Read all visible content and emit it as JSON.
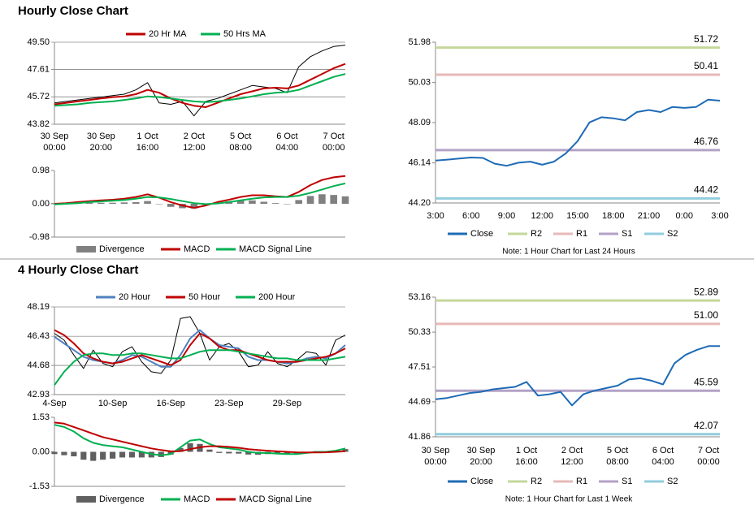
{
  "sections": [
    {
      "title": "Hourly Close Chart"
    },
    {
      "title": "4 Hourly Close Chart"
    }
  ],
  "chart_data": [
    {
      "type": "line",
      "legend": "top",
      "grid": true,
      "categories": [
        "30 Sep 00:00",
        null,
        null,
        null,
        "30 Sep 20:00",
        null,
        null,
        null,
        "1 Oct 16:00",
        null,
        null,
        null,
        "2 Oct 12:00",
        null,
        null,
        null,
        "5 Oct 08:00",
        null,
        null,
        null,
        "6 Oct 04:00",
        null,
        null,
        null,
        "7 Oct 00:00",
        null
      ],
      "ylim": [
        43.82,
        49.5
      ],
      "yticks": [
        43.82,
        45.72,
        47.61,
        {
          "value": 49.5,
          "label": "49.50"
        }
      ],
      "series": [
        {
          "name": "Close",
          "legend": false,
          "color": "#000000",
          "values": [
            45.3,
            45.4,
            45.5,
            45.6,
            45.7,
            45.8,
            45.9,
            46.2,
            46.7,
            45.3,
            45.2,
            45.4,
            44.4,
            45.4,
            45.6,
            45.9,
            46.2,
            46.5,
            46.4,
            46.3,
            46.0,
            47.8,
            48.5,
            48.9,
            49.2,
            49.3
          ]
        },
        {
          "name": "20 Hr MA",
          "color": "#c00000",
          "values": [
            45.2,
            45.3,
            45.4,
            45.5,
            45.6,
            45.7,
            45.75,
            45.9,
            46.2,
            46.0,
            45.6,
            45.3,
            45.1,
            45.0,
            45.3,
            45.6,
            45.9,
            46.1,
            46.3,
            46.35,
            46.3,
            46.5,
            46.9,
            47.3,
            47.7,
            48.0
          ]
        },
        {
          "name": "50 Hrs MA",
          "color": "#00b050",
          "values": [
            45.1,
            45.15,
            45.2,
            45.3,
            45.35,
            45.4,
            45.5,
            45.6,
            45.75,
            45.7,
            45.6,
            45.5,
            45.4,
            45.35,
            45.4,
            45.5,
            45.6,
            45.75,
            45.9,
            46.0,
            46.05,
            46.2,
            46.5,
            46.8,
            47.1,
            47.3
          ]
        }
      ]
    },
    {
      "type": "combo",
      "legend": "bottom",
      "grid": false,
      "ylim": [
        -0.98,
        0.98
      ],
      "yticks": [
        -0.98,
        {
          "value": 0,
          "label": "0.00"
        },
        0.98
      ],
      "series": [
        {
          "name": "Divergence",
          "kind": "bar",
          "color": "#808080",
          "values": [
            0.02,
            0.02,
            0.03,
            0.03,
            0.03,
            0.03,
            0.04,
            0.05,
            0.08,
            -0.01,
            -0.09,
            -0.13,
            -0.14,
            -0.04,
            0.04,
            0.07,
            0.1,
            0.1,
            0.06,
            0.02,
            0,
            0.11,
            0.23,
            0.28,
            0.26,
            0.22
          ]
        },
        {
          "name": "MACD",
          "kind": "line",
          "color": "#c00000",
          "values": [
            0,
            0.02,
            0.05,
            0.08,
            0.1,
            0.12,
            0.15,
            0.2,
            0.28,
            0.18,
            0.05,
            -0.05,
            -0.12,
            -0.05,
            0.05,
            0.12,
            0.2,
            0.25,
            0.25,
            0.22,
            0.2,
            0.35,
            0.55,
            0.7,
            0.78,
            0.82
          ]
        },
        {
          "name": "MACD Signal Line",
          "kind": "line",
          "color": "#00b050",
          "values": [
            -0.02,
            0,
            0.02,
            0.05,
            0.07,
            0.09,
            0.11,
            0.15,
            0.2,
            0.19,
            0.14,
            0.08,
            0.02,
            -0.01,
            0.01,
            0.05,
            0.1,
            0.15,
            0.19,
            0.2,
            0.2,
            0.24,
            0.32,
            0.42,
            0.52,
            0.6
          ]
        }
      ]
    },
    {
      "type": "line",
      "legend": "bottom",
      "grid": false,
      "note": "Note: 1 Hour Chart for Last 24 Hours",
      "categories": [
        "3:00",
        null,
        null,
        "6:00",
        null,
        null,
        "9:00",
        null,
        null,
        "12:00",
        null,
        null,
        "15:00",
        null,
        null,
        "18:00",
        null,
        null,
        "21:00",
        null,
        null,
        "0:00",
        null,
        null,
        "3:00"
      ],
      "ylim": [
        44.2,
        51.98
      ],
      "yticks": [
        {
          "value": 44.2,
          "label": "44.20"
        },
        46.14,
        48.09,
        50.03,
        51.98
      ],
      "series": [
        {
          "name": "Close",
          "color": "#1f6bb5",
          "values": [
            46.25,
            46.3,
            46.35,
            46.4,
            46.38,
            46.1,
            46.0,
            46.15,
            46.2,
            46.05,
            46.2,
            46.6,
            47.2,
            48.1,
            48.35,
            48.3,
            48.2,
            48.6,
            48.7,
            48.6,
            48.85,
            48.8,
            48.85,
            49.2,
            49.15
          ]
        }
      ],
      "levels": [
        {
          "name": "R2",
          "color": "#c4d79b",
          "value": 51.72
        },
        {
          "name": "R1",
          "color": "#e6b9b8",
          "value": 50.41
        },
        {
          "name": "S1",
          "color": "#b3a2c7",
          "value": 46.76
        },
        {
          "name": "S2",
          "color": "#92cddc",
          "value": 44.42
        }
      ]
    },
    {
      "type": "line",
      "legend": "top",
      "grid": true,
      "categories": [
        "4-Sep",
        null,
        null,
        null,
        null,
        null,
        "10-Sep",
        null,
        null,
        null,
        null,
        null,
        "16-Sep",
        null,
        null,
        null,
        null,
        null,
        "23-Sep",
        null,
        null,
        null,
        null,
        null,
        "29-Sep",
        null,
        null,
        null,
        null,
        null,
        null
      ],
      "ylim": [
        42.93,
        48.19
      ],
      "yticks": [
        42.93,
        44.68,
        46.43,
        48.19
      ],
      "series": [
        {
          "name": "Close",
          "legend": false,
          "color": "#000000",
          "values": [
            46.6,
            46.2,
            45.3,
            44.5,
            45.6,
            44.8,
            44.6,
            45.5,
            45.8,
            44.9,
            44.3,
            44.2,
            45.0,
            47.5,
            47.6,
            46.6,
            45.0,
            45.8,
            46.0,
            45.5,
            44.6,
            44.7,
            45.5,
            44.8,
            44.6,
            45.0,
            45.5,
            45.4,
            44.7,
            46.2,
            46.5
          ]
        },
        {
          "name": "20 Hour",
          "color": "#4f81bd",
          "values": [
            46.4,
            46.0,
            45.6,
            45.2,
            45.0,
            44.9,
            44.8,
            45.0,
            45.3,
            45.2,
            44.9,
            44.6,
            44.6,
            45.3,
            46.3,
            46.8,
            46.3,
            45.9,
            45.8,
            45.7,
            45.2,
            45.0,
            45.0,
            44.9,
            44.8,
            44.9,
            45.1,
            45.2,
            45.1,
            45.4,
            45.9
          ]
        },
        {
          "name": "50 Hour",
          "color": "#c00000",
          "values": [
            46.8,
            46.5,
            46.0,
            45.4,
            45.1,
            44.9,
            44.8,
            44.9,
            45.1,
            45.3,
            45.1,
            44.9,
            44.7,
            45.0,
            45.9,
            46.6,
            46.3,
            45.8,
            45.6,
            45.6,
            45.4,
            45.2,
            45.0,
            44.9,
            44.9,
            44.9,
            45.0,
            45.1,
            45.2,
            45.4,
            45.7
          ]
        },
        {
          "name": "200 Hour",
          "color": "#00b050",
          "values": [
            43.5,
            44.3,
            44.9,
            45.3,
            45.4,
            45.4,
            45.3,
            45.3,
            45.4,
            45.4,
            45.3,
            45.2,
            45.1,
            45.1,
            45.3,
            45.5,
            45.6,
            45.6,
            45.6,
            45.5,
            45.4,
            45.3,
            45.2,
            45.1,
            45.1,
            45.0,
            45.0,
            45.0,
            45.0,
            45.1,
            45.2
          ]
        }
      ]
    },
    {
      "type": "combo",
      "legend": "bottom",
      "grid": false,
      "ylim": [
        -1.53,
        1.53
      ],
      "yticks": [
        -1.53,
        {
          "value": 0,
          "label": "0.00"
        },
        1.53
      ],
      "series": [
        {
          "name": "Divergence",
          "kind": "bar",
          "color": "#606060",
          "values": [
            -0.1,
            -0.15,
            -0.2,
            -0.35,
            -0.4,
            -0.35,
            -0.3,
            -0.25,
            -0.25,
            -0.25,
            -0.25,
            -0.23,
            -0.12,
            0.17,
            0.38,
            0.35,
            0.1,
            -0.05,
            -0.07,
            -0.08,
            -0.12,
            -0.13,
            -0.1,
            -0.1,
            -0.1,
            -0.08,
            -0.02,
            0.03,
            0.02,
            0.05,
            0.12
          ]
        },
        {
          "name": "MACD",
          "kind": "line",
          "color": "#00b050",
          "values": [
            1.2,
            1.1,
            0.9,
            0.6,
            0.4,
            0.3,
            0.25,
            0.2,
            0.1,
            0,
            -0.1,
            -0.15,
            -0.1,
            0.2,
            0.5,
            0.55,
            0.35,
            0.2,
            0.15,
            0.1,
            0,
            -0.05,
            -0.05,
            -0.08,
            -0.1,
            -0.1,
            -0.05,
            0,
            0,
            0.05,
            0.15
          ]
        },
        {
          "name": "MACD Signal Line",
          "kind": "line",
          "color": "#c00000",
          "values": [
            1.3,
            1.25,
            1.1,
            0.95,
            0.8,
            0.65,
            0.55,
            0.45,
            0.35,
            0.25,
            0.15,
            0.08,
            0.02,
            0.03,
            0.12,
            0.2,
            0.25,
            0.25,
            0.22,
            0.18,
            0.12,
            0.08,
            0.05,
            0.02,
            0,
            -0.02,
            -0.03,
            -0.03,
            -0.02,
            0,
            0.03
          ]
        }
      ]
    },
    {
      "type": "line",
      "legend": "bottom",
      "grid": false,
      "note": "Note: 1 Hour Chart for Last 1 Week",
      "categories": [
        "30 Sep 00:00",
        null,
        null,
        null,
        "30 Sep 20:00",
        null,
        null,
        null,
        "1 Oct 16:00",
        null,
        null,
        null,
        "2 Oct 12:00",
        null,
        null,
        null,
        "5 Oct 08:00",
        null,
        null,
        null,
        "6 Oct 04:00",
        null,
        null,
        null,
        "7 Oct 00:00",
        null
      ],
      "ylim": [
        41.86,
        53.16
      ],
      "yticks": [
        41.86,
        44.69,
        47.51,
        50.33,
        53.16
      ],
      "series": [
        {
          "name": "Close",
          "color": "#1f6bb5",
          "values": [
            44.9,
            45.0,
            45.2,
            45.4,
            45.5,
            45.7,
            45.8,
            45.9,
            46.3,
            45.2,
            45.3,
            45.5,
            44.4,
            45.3,
            45.6,
            45.8,
            46.0,
            46.5,
            46.6,
            46.4,
            46.1,
            47.8,
            48.5,
            48.9,
            49.2,
            49.2
          ]
        }
      ],
      "levels": [
        {
          "name": "R2",
          "color": "#c4d79b",
          "value": 52.89
        },
        {
          "name": "R1",
          "color": "#e6b9b8",
          "value": 51,
          "label": "51.00"
        },
        {
          "name": "S1",
          "color": "#b3a2c7",
          "value": 45.59
        },
        {
          "name": "S2",
          "color": "#92cddc",
          "value": 42.07
        }
      ]
    }
  ]
}
